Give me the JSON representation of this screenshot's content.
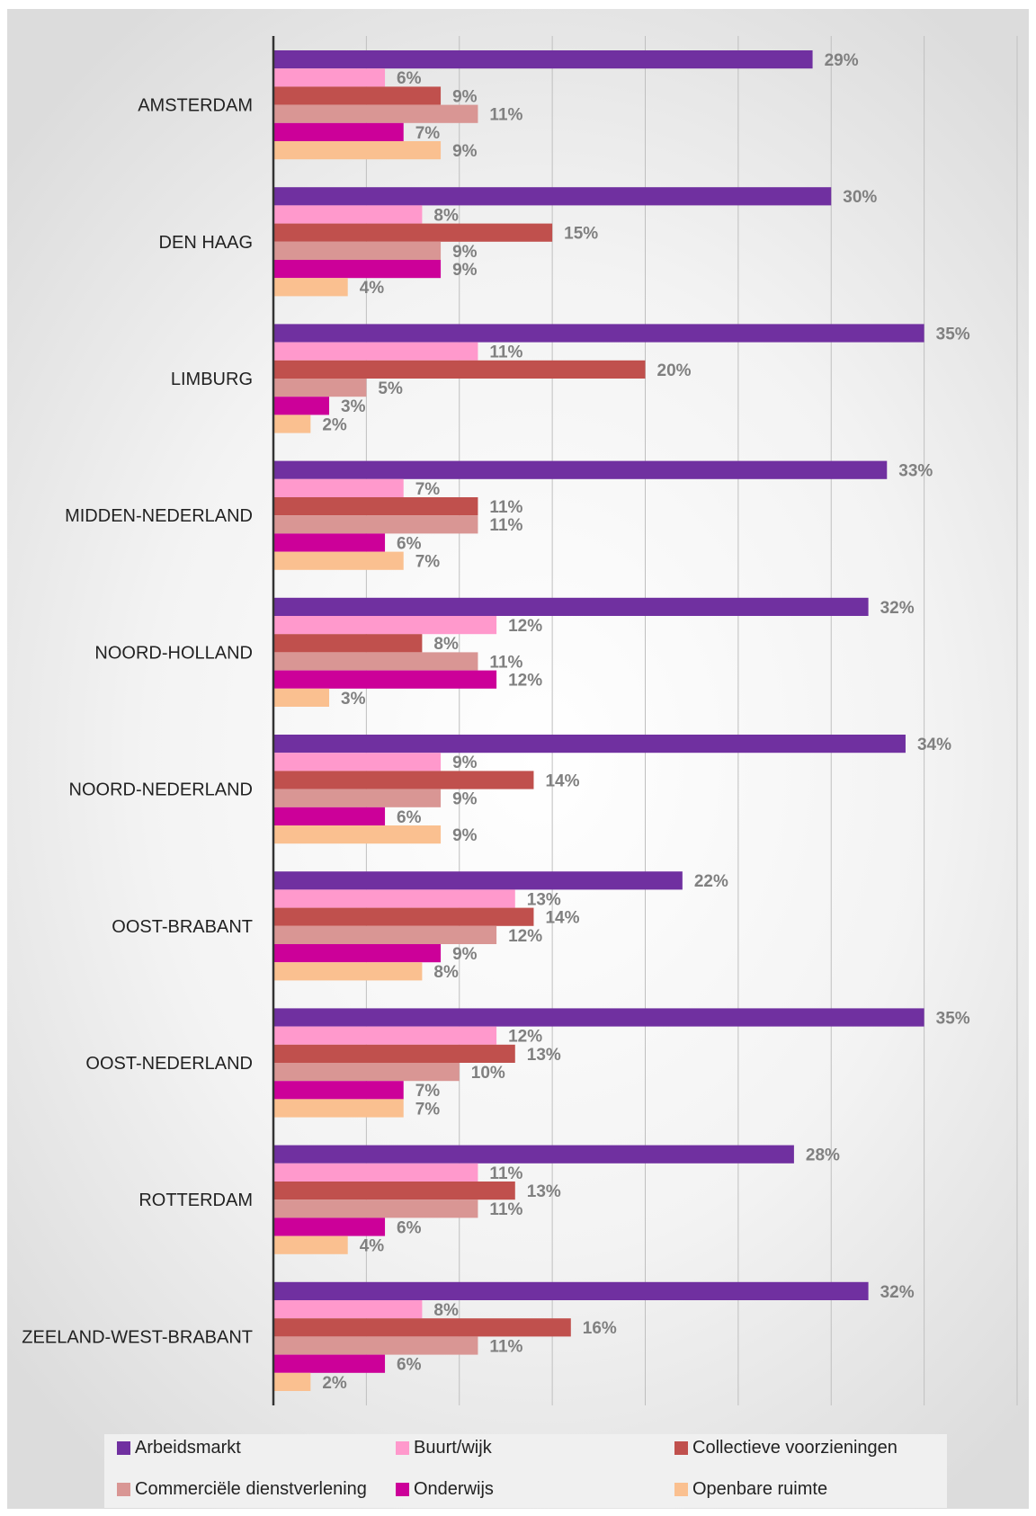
{
  "chart_data": {
    "type": "bar",
    "orientation": "horizontal",
    "categories": [
      "AMSTERDAM",
      "DEN HAAG",
      "LIMBURG",
      "MIDDEN-NEDERLAND",
      "NOORD-HOLLAND",
      "NOORD-NEDERLAND",
      "OOST-BRABANT",
      "OOST-NEDERLAND",
      "ROTTERDAM",
      "ZEELAND-WEST-BRABANT"
    ],
    "series": [
      {
        "name": "Arbeidsmarkt",
        "color": "#7030a0",
        "values": [
          29,
          30,
          35,
          33,
          32,
          34,
          22,
          35,
          28,
          32
        ],
        "labels": [
          "29%",
          "30%",
          "35%",
          "33%",
          "32%",
          "34%",
          "22%",
          "35%",
          "28%",
          "32%"
        ]
      },
      {
        "name": "Buurt/wijk",
        "color": "#ff99cc",
        "values": [
          6,
          8,
          11,
          7,
          12,
          9,
          13,
          12,
          11,
          8
        ],
        "labels": [
          "6%",
          "8%",
          "11%",
          "7%",
          "12%",
          "9%",
          "13%",
          "12%",
          "11%",
          "8%"
        ]
      },
      {
        "name": "Collectieve voorzieningen",
        "color": "#c0504d",
        "values": [
          9,
          15,
          20,
          11,
          8,
          14,
          14,
          13,
          13,
          16
        ],
        "labels": [
          "9%",
          "15%",
          "20%",
          "11%",
          "8%",
          "14%",
          "14%",
          "13%",
          "13%",
          "16%"
        ]
      },
      {
        "name": "Commerciële dienstverlening",
        "color": "#d99694",
        "values": [
          11,
          9,
          5,
          11,
          11,
          9,
          12,
          10,
          11,
          11
        ],
        "labels": [
          "11%",
          "9%",
          "5%",
          "11%",
          "11%",
          "9%",
          "12%",
          "10%",
          "11%",
          "11%"
        ]
      },
      {
        "name": "Onderwijs",
        "color": "#cc0099",
        "values": [
          7,
          9,
          3,
          6,
          12,
          6,
          9,
          7,
          6,
          6
        ],
        "labels": [
          "7%",
          "9%",
          "3%",
          "6%",
          "12%",
          "6%",
          "9%",
          "7%",
          "6%",
          "6%"
        ]
      },
      {
        "name": "Openbare ruimte",
        "color": "#fac090",
        "values": [
          9,
          4,
          2,
          7,
          3,
          9,
          8,
          7,
          4,
          2
        ],
        "labels": [
          "9%",
          "4%",
          "2%",
          "7%",
          "3%",
          "9%",
          "8%",
          "7%",
          "4%",
          "2%"
        ]
      }
    ],
    "xlim": [
      0,
      40
    ],
    "grid": true,
    "legend_position": "bottom",
    "axis_color": "#333333",
    "gridline_color": "#bfbfbf"
  }
}
